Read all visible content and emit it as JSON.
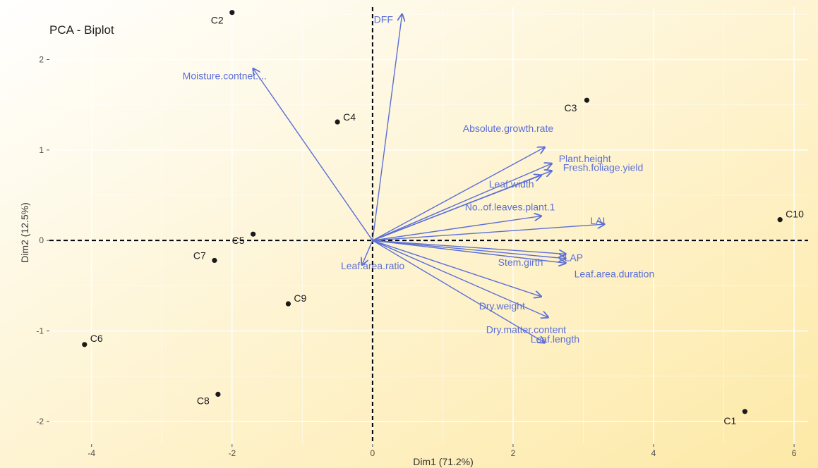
{
  "chart_data": {
    "type": "scatter",
    "subtype": "pca-biplot",
    "title": "PCA - Biplot",
    "xlabel": "Dim1 (71.2%)",
    "ylabel": "Dim2 (12.5%)",
    "xlim": [
      -4.6,
      6.2
    ],
    "ylim": [
      -2.25,
      2.58
    ],
    "xticks": [
      -4,
      -2,
      0,
      2,
      4,
      6
    ],
    "yticks": [
      -2,
      -1,
      0,
      1,
      2
    ],
    "grid": true,
    "colors": {
      "points": "#1a1a1a",
      "arrows": "#5b6fd6",
      "background_from": "#ffffff",
      "background_to": "#fde9a6",
      "gridline": "#ffffff",
      "zero_line": "#000000"
    },
    "points": [
      {
        "label": "C1",
        "x": 5.3,
        "y": -1.89
      },
      {
        "label": "C2",
        "x": -2.0,
        "y": 2.52
      },
      {
        "label": "C3",
        "x": 3.05,
        "y": 1.55
      },
      {
        "label": "C4",
        "x": -0.5,
        "y": 1.31
      },
      {
        "label": "C5",
        "x": -1.7,
        "y": 0.07
      },
      {
        "label": "C6",
        "x": -4.1,
        "y": -1.15
      },
      {
        "label": "C7",
        "x": -2.25,
        "y": -0.22
      },
      {
        "label": "C8",
        "x": -2.2,
        "y": -1.7
      },
      {
        "label": "C9",
        "x": -1.2,
        "y": -0.7
      },
      {
        "label": "C10",
        "x": 5.8,
        "y": 0.23
      }
    ],
    "variables": [
      {
        "label": "DFF",
        "x": 0.42,
        "y": 2.5
      },
      {
        "label": "Moisture.contnet....",
        "x": -1.7,
        "y": 1.9
      },
      {
        "label": "Absolute.growth.rate",
        "x": 2.45,
        "y": 1.03
      },
      {
        "label": "Plant.height",
        "x": 2.55,
        "y": 0.85
      },
      {
        "label": "Fresh.foliage.yield",
        "x": 2.55,
        "y": 0.77
      },
      {
        "label": "Leaf.width",
        "x": 2.4,
        "y": 0.72
      },
      {
        "label": "No..of.leaves.plant.1",
        "x": 2.4,
        "y": 0.27
      },
      {
        "label": "LAI",
        "x": 3.3,
        "y": 0.18
      },
      {
        "label": "LAP",
        "x": 2.75,
        "y": -0.15
      },
      {
        "label": "Stem.girth",
        "x": 2.75,
        "y": -0.2
      },
      {
        "label": "Leaf.area.duration",
        "x": 2.75,
        "y": -0.25
      },
      {
        "label": "Dry.weight",
        "x": 2.4,
        "y": -0.62
      },
      {
        "label": "Dry.matter.content",
        "x": 2.5,
        "y": -0.85
      },
      {
        "label": "Leaf.length",
        "x": 2.45,
        "y": -1.13
      },
      {
        "label": "Leaf.area.ratio",
        "x": -0.15,
        "y": -0.27
      }
    ]
  }
}
